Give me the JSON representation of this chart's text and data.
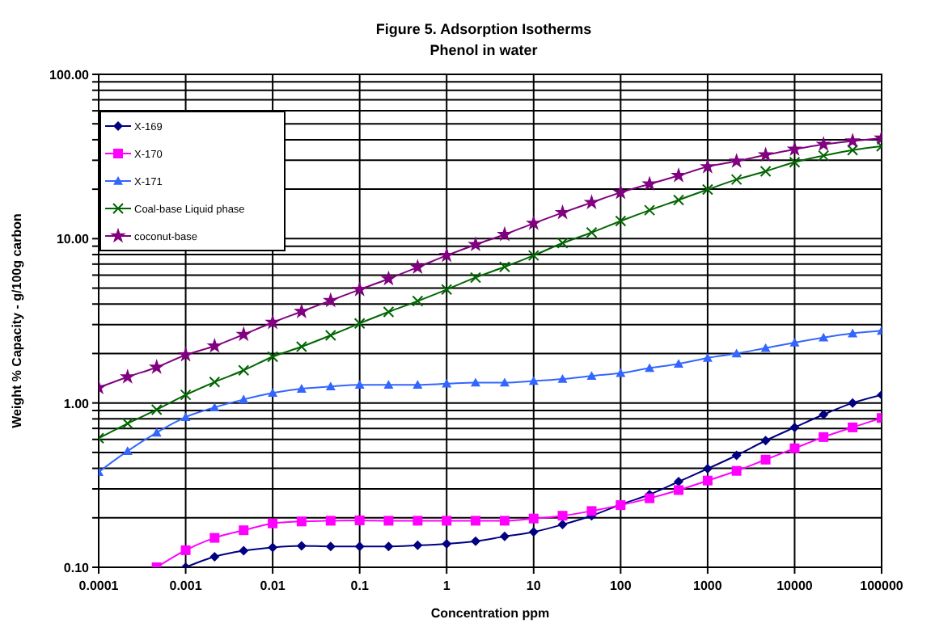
{
  "chart_data": {
    "type": "line",
    "title": "Figure 5. Adsorption Isotherms",
    "subtitle": "Phenol in water",
    "xlabel": "Concentration ppm",
    "ylabel": "Weight % Capacity - g/100g carbon",
    "log": "xy",
    "grid": true,
    "legend": "top left",
    "x": [
      0.0001,
      0.000215,
      0.000464,
      0.001,
      0.00215,
      0.00464,
      0.01,
      0.0215,
      0.0464,
      0.1,
      0.215,
      0.464,
      1,
      2.15,
      4.64,
      10,
      21.5,
      46.4,
      100,
      215,
      464,
      1000,
      2150,
      4640,
      10000,
      21500,
      46400,
      100000
    ],
    "xlim": [
      0.0001,
      100000
    ],
    "xticks": [
      0.0001,
      0.001,
      0.01,
      0.1,
      1,
      10,
      100,
      1000,
      10000,
      100000
    ],
    "ylim": [
      0.1,
      100
    ],
    "yticks": [
      {
        "value": 0.1,
        "label": "0.10"
      },
      {
        "value": 0.2,
        "label": null
      },
      {
        "value": 0.3,
        "label": null
      },
      {
        "value": 0.4,
        "label": null
      },
      {
        "value": 0.5,
        "label": null
      },
      {
        "value": 0.6,
        "label": null
      },
      {
        "value": 0.7,
        "label": null
      },
      {
        "value": 0.8,
        "label": null
      },
      {
        "value": 0.9,
        "label": null
      },
      {
        "value": 1,
        "label": "1.00"
      },
      {
        "value": 2,
        "label": null
      },
      {
        "value": 3,
        "label": null
      },
      {
        "value": 4,
        "label": null
      },
      {
        "value": 5,
        "label": null
      },
      {
        "value": 6,
        "label": null
      },
      {
        "value": 7,
        "label": null
      },
      {
        "value": 8,
        "label": null
      },
      {
        "value": 9,
        "label": null
      },
      {
        "value": 10,
        "label": "10.00"
      },
      {
        "value": 20,
        "label": null
      },
      {
        "value": 30,
        "label": null
      },
      {
        "value": 40,
        "label": null
      },
      {
        "value": 50,
        "label": null
      },
      {
        "value": 60,
        "label": null
      },
      {
        "value": 70,
        "label": null
      },
      {
        "value": 80,
        "label": null
      },
      {
        "value": 90,
        "label": null
      },
      {
        "value": 100,
        "label": "100.00"
      }
    ],
    "series": [
      {
        "name": "X-169",
        "color": "#000080",
        "marker": "diamond",
        "values": [
          null,
          null,
          null,
          0.1,
          0.116,
          0.126,
          0.132,
          0.135,
          0.134,
          0.134,
          0.134,
          0.136,
          0.139,
          0.144,
          0.154,
          0.164,
          0.182,
          0.206,
          0.241,
          0.277,
          0.332,
          0.398,
          0.48,
          0.59,
          0.71,
          0.85,
          1.0,
          1.12
        ]
      },
      {
        "name": "X-170",
        "color": "#ff00ff",
        "marker": "square",
        "values": [
          null,
          null,
          0.1,
          0.127,
          0.151,
          0.168,
          0.185,
          0.19,
          0.192,
          0.193,
          0.192,
          0.192,
          0.192,
          0.192,
          0.192,
          0.198,
          0.206,
          0.22,
          0.239,
          0.263,
          0.295,
          0.337,
          0.386,
          0.452,
          0.53,
          0.62,
          0.71,
          0.81
        ]
      },
      {
        "name": "X-171",
        "color": "#3366ff",
        "marker": "triangle",
        "values": [
          0.38,
          0.51,
          0.66,
          0.82,
          0.94,
          1.05,
          1.15,
          1.22,
          1.26,
          1.29,
          1.29,
          1.29,
          1.31,
          1.33,
          1.33,
          1.36,
          1.4,
          1.46,
          1.52,
          1.63,
          1.73,
          1.88,
          2.0,
          2.16,
          2.33,
          2.5,
          2.65,
          2.75
        ]
      },
      {
        "name": "Coal-base Liquid phase",
        "color": "#006600",
        "marker": "cross",
        "values": [
          0.61,
          0.75,
          0.91,
          1.12,
          1.34,
          1.58,
          1.91,
          2.2,
          2.58,
          3.05,
          3.58,
          4.17,
          4.9,
          5.8,
          6.73,
          7.9,
          9.4,
          10.9,
          12.8,
          14.9,
          17.2,
          19.9,
          22.9,
          25.7,
          29.2,
          32,
          34.6,
          36.5
        ]
      },
      {
        "name": "coconut-base",
        "color": "#800080",
        "marker": "star",
        "values": [
          1.24,
          1.44,
          1.65,
          1.96,
          2.22,
          2.61,
          3.09,
          3.6,
          4.2,
          4.9,
          5.7,
          6.7,
          7.9,
          9.2,
          10.6,
          12.4,
          14.4,
          16.6,
          19.1,
          21.5,
          24.2,
          27.4,
          29.6,
          32.3,
          35,
          37.5,
          39.3,
          40.9
        ]
      }
    ]
  }
}
